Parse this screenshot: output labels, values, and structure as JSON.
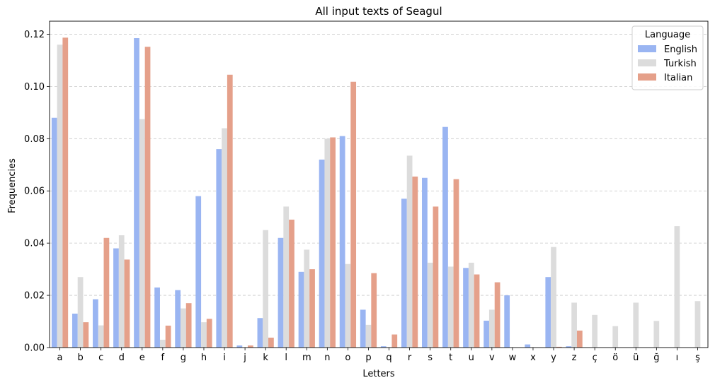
{
  "chart_data": {
    "type": "bar",
    "title": "All input texts of Seagul",
    "xlabel": "Letters",
    "ylabel": "Frequencies",
    "ylim": [
      0,
      0.125
    ],
    "yticks": [
      "0.00",
      "0.02",
      "0.04",
      "0.06",
      "0.08",
      "0.10",
      "0.12"
    ],
    "grid": "y-dashed",
    "legend": {
      "title": "Language",
      "placement": "top-right"
    },
    "categories": [
      "a",
      "b",
      "c",
      "d",
      "e",
      "f",
      "g",
      "h",
      "i",
      "j",
      "k",
      "l",
      "m",
      "n",
      "o",
      "p",
      "q",
      "r",
      "s",
      "t",
      "u",
      "v",
      "w",
      "x",
      "y",
      "z",
      "ç",
      "ö",
      "ü",
      "ğ",
      "ı",
      "ş"
    ],
    "series": [
      {
        "name": "English",
        "color": "#9ab5f2",
        "values": [
          0.088,
          0.013,
          0.0185,
          0.038,
          0.1185,
          0.023,
          0.022,
          0.058,
          0.076,
          0.0008,
          0.0113,
          0.042,
          0.029,
          0.072,
          0.081,
          0.0145,
          0.0005,
          0.057,
          0.065,
          0.0845,
          0.0305,
          0.0103,
          0.02,
          0.0012,
          0.027,
          0.0005,
          0,
          0,
          0,
          0,
          0,
          0
        ]
      },
      {
        "name": "Turkish",
        "color": "#dcdcdc",
        "values": [
          0.116,
          0.027,
          0.0085,
          0.043,
          0.0875,
          0.003,
          0.015,
          0.0097,
          0.084,
          0,
          0.045,
          0.054,
          0.0375,
          0.08,
          0.032,
          0.0087,
          0,
          0.0735,
          0.0325,
          0.031,
          0.0325,
          0.0145,
          0,
          0,
          0.0385,
          0.0172,
          0.0125,
          0.0082,
          0.0172,
          0.0102,
          0.0465,
          0.0178
        ]
      },
      {
        "name": "Italian",
        "color": "#e5a08a",
        "values": [
          0.1187,
          0.0097,
          0.042,
          0.0337,
          0.1152,
          0.0084,
          0.017,
          0.011,
          0.1045,
          0.0008,
          0.0038,
          0.049,
          0.03,
          0.0805,
          0.1018,
          0.0285,
          0.005,
          0.0655,
          0.054,
          0.0645,
          0.028,
          0.025,
          0,
          0,
          0.0003,
          0.0065,
          0,
          0,
          0,
          0,
          0,
          0
        ]
      }
    ]
  }
}
